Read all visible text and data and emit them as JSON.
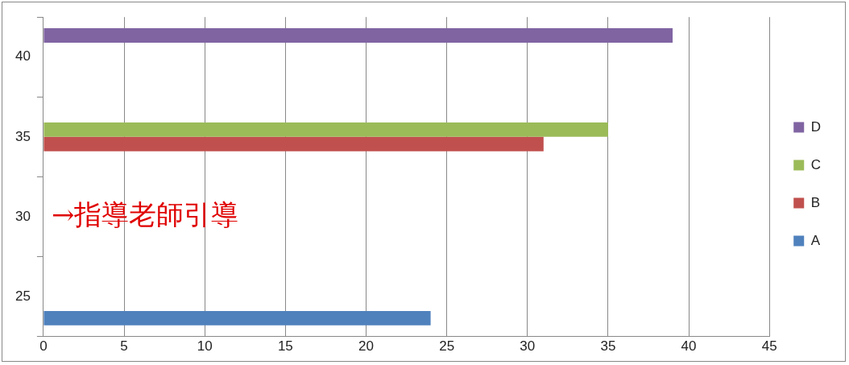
{
  "chart_data": {
    "type": "bar",
    "orientation": "horizontal",
    "categories": [
      "40",
      "35",
      "30",
      "25"
    ],
    "series": [
      {
        "name": "A",
        "color": "#4f81bd",
        "values": [
          null,
          null,
          null,
          24
        ]
      },
      {
        "name": "B",
        "color": "#c0504d",
        "values": [
          null,
          31,
          null,
          null
        ]
      },
      {
        "name": "C",
        "color": "#9bbb59",
        "values": [
          null,
          35,
          null,
          null
        ]
      },
      {
        "name": "D",
        "color": "#8064a2",
        "values": [
          39,
          null,
          null,
          null
        ]
      }
    ],
    "xlim": [
      0,
      45
    ],
    "xticks": [
      0,
      5,
      10,
      15,
      20,
      25,
      30,
      35,
      40,
      45
    ],
    "grid": "x",
    "legend": "right",
    "annotations": [
      "→指導老師引導"
    ]
  }
}
